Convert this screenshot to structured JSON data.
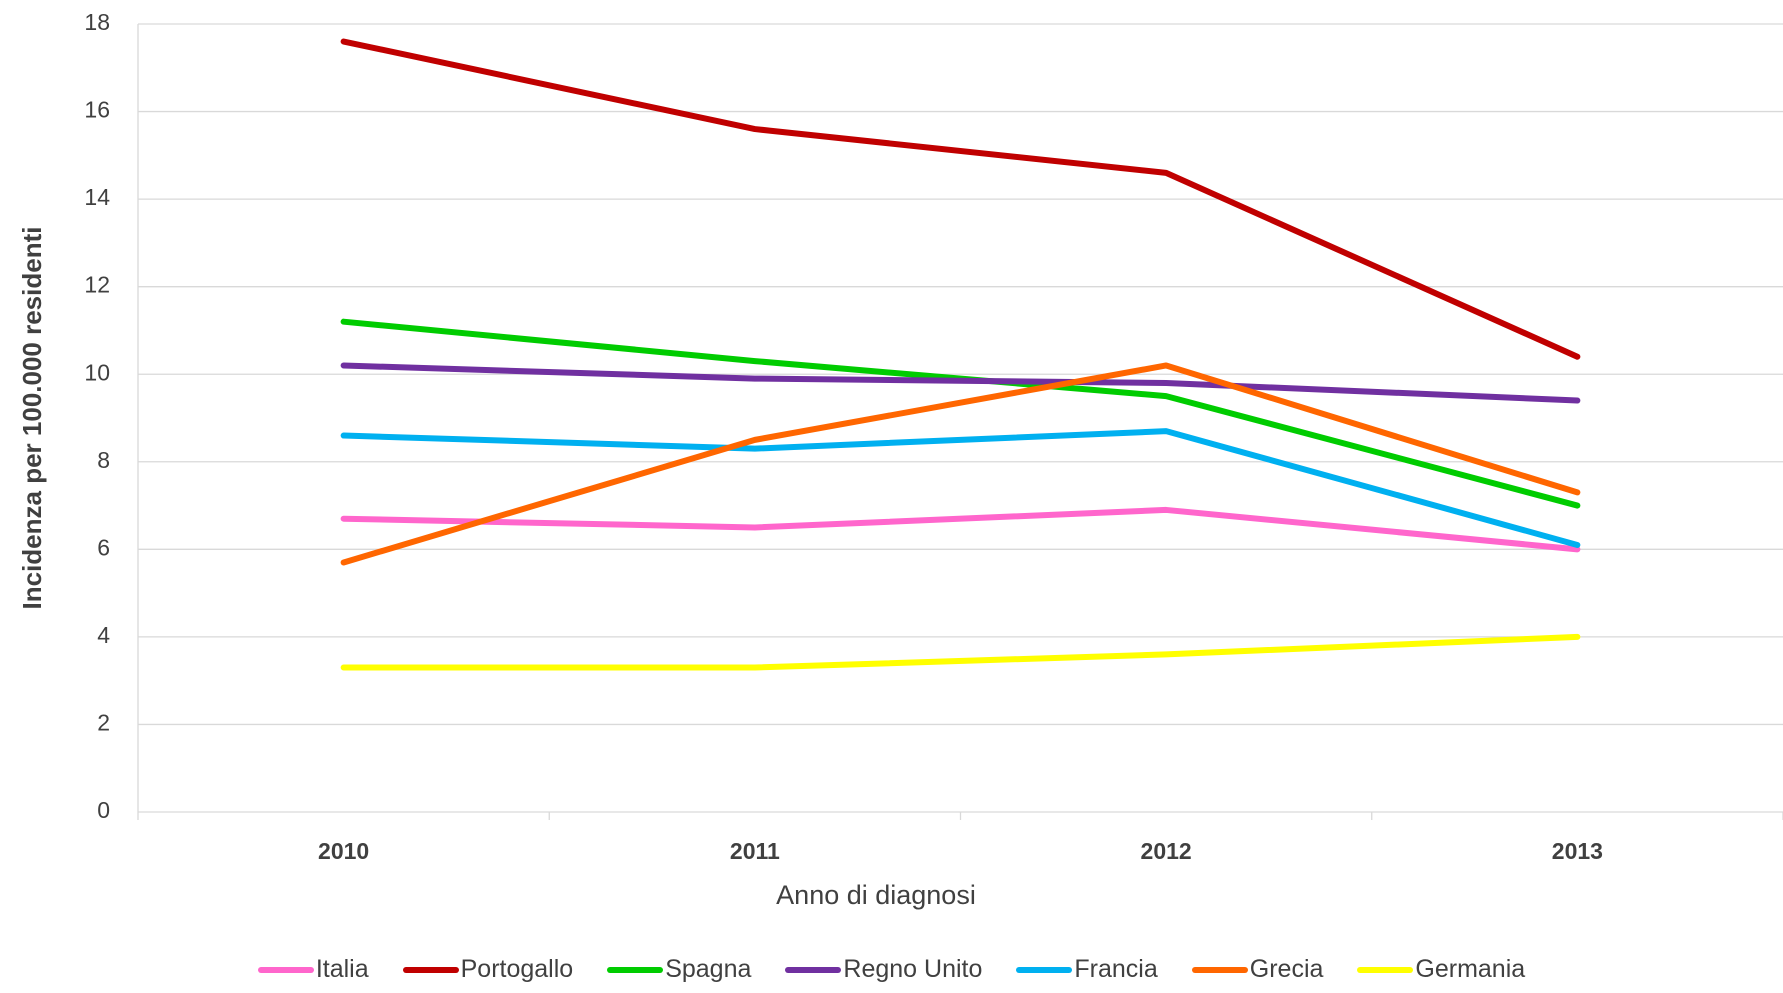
{
  "chart_data": {
    "type": "line",
    "x_label": "Anno di diagnosi",
    "y_label": "Incidenza per 100.000 residenti",
    "categories": [
      "2010",
      "2011",
      "2012",
      "2013"
    ],
    "series": [
      {
        "name": "Italia",
        "color": "#ff66cc",
        "values": [
          6.7,
          6.5,
          6.9,
          6.0
        ]
      },
      {
        "name": "Portogallo",
        "color": "#c00000",
        "values": [
          17.6,
          15.6,
          14.6,
          10.4
        ]
      },
      {
        "name": "Spagna",
        "color": "#00cc00",
        "values": [
          11.2,
          10.3,
          9.5,
          7.0
        ]
      },
      {
        "name": "Regno Unito",
        "color": "#7030a0",
        "values": [
          10.2,
          9.9,
          9.8,
          9.4
        ]
      },
      {
        "name": "Francia",
        "color": "#00b0f0",
        "values": [
          8.6,
          8.3,
          8.7,
          6.1
        ]
      },
      {
        "name": "Grecia",
        "color": "#ff6600",
        "values": [
          5.7,
          8.5,
          10.2,
          7.3
        ]
      },
      {
        "name": "Germania",
        "color": "#ffff00",
        "values": [
          3.3,
          3.3,
          3.6,
          4.0
        ]
      }
    ],
    "ylim": [
      0,
      18
    ],
    "yticks": [
      0,
      2,
      4,
      6,
      8,
      10,
      12,
      14,
      16,
      18
    ],
    "grid": true,
    "legend": "bottom"
  }
}
